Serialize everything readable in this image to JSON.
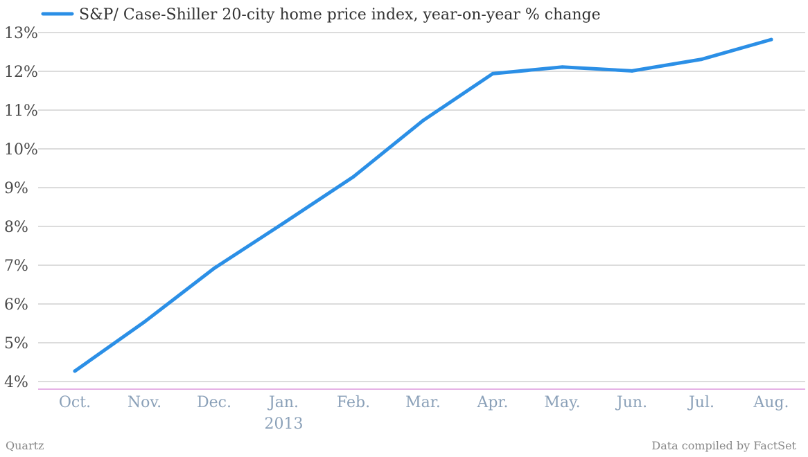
{
  "chart_data": {
    "type": "line",
    "categories": [
      "Oct.",
      "Nov.",
      "Dec.",
      "Jan.",
      "Feb.",
      "Mar.",
      "Apr.",
      "May.",
      "Jun.",
      "Jul.",
      "Aug."
    ],
    "year_label": "2013",
    "series": [
      {
        "name": "S&P/ Case-Shiller 20-city home price index, year-on-year % change",
        "color": "#2b8fe6",
        "values": [
          4.27,
          5.54,
          6.92,
          8.09,
          9.28,
          10.73,
          11.94,
          12.11,
          12.01,
          12.31,
          12.82
        ]
      }
    ],
    "yticks": [
      "4%",
      "5%",
      "6%",
      "7%",
      "8%",
      "9%",
      "10%",
      "11%",
      "12%",
      "13%"
    ],
    "ylim": [
      4,
      13
    ],
    "grid": true,
    "legend_position": "top-left",
    "axis_color": "#cc66cc"
  },
  "footer": {
    "source_left": "Quartz",
    "source_right": "Data compiled by FactSet"
  }
}
